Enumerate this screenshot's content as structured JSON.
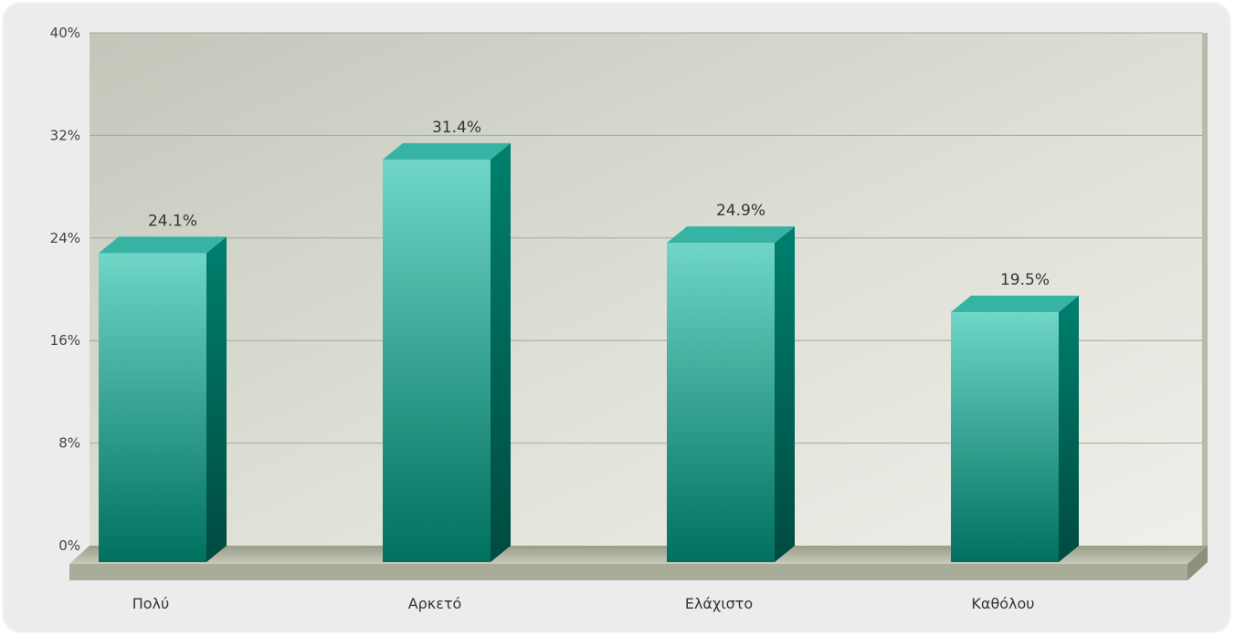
{
  "chart_data": {
    "type": "bar",
    "style": "3d",
    "categories": [
      "Πολύ",
      "Αρκετό",
      "Ελάχιστο",
      "Καθόλου"
    ],
    "values": [
      24.1,
      31.4,
      24.9,
      19.5
    ],
    "data_labels": [
      "24.1%",
      "31.4%",
      "24.9%",
      "19.5%"
    ],
    "title": "",
    "xlabel": "",
    "ylabel": "",
    "ylim": [
      0,
      40
    ],
    "yticks": [
      0,
      8,
      16,
      24,
      32,
      40
    ],
    "ytick_labels": [
      "0%",
      "8%",
      "16%",
      "24%",
      "32%",
      "40%"
    ],
    "grid": true,
    "legend": "none",
    "colors": {
      "bar_top": "#6fd6c8",
      "bar_bottom": "#00705f",
      "bar_side": "#00695a",
      "bar_cap": "#37b3a4"
    }
  }
}
